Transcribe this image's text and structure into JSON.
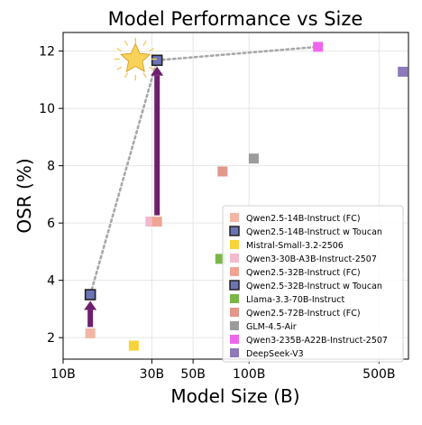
{
  "chart_data": {
    "type": "scatter",
    "title": "Model Performance vs Size",
    "xlabel": "Model Size (B)",
    "ylabel": "OSR (%)",
    "x_scale": "log",
    "xlim": [
      10,
      720
    ],
    "ylim": [
      1.25,
      12.65
    ],
    "x_ticks": [
      {
        "value": 10,
        "label": "10B"
      },
      {
        "value": 30,
        "label": "30B"
      },
      {
        "value": 50,
        "label": "50B"
      },
      {
        "value": 100,
        "label": "100B"
      },
      {
        "value": 500,
        "label": "500B"
      }
    ],
    "y_ticks": [
      2,
      4,
      6,
      8,
      10,
      12
    ],
    "grid": true,
    "legend_position": "lower-right",
    "series": [
      {
        "name": "Qwen2.5-14B-Instruct (FC)",
        "color": "#f4b6a4",
        "edge": "#f4b6a4",
        "x": 14,
        "y": 2.15
      },
      {
        "name": "Qwen2.5-14B-Instruct w Toucan",
        "color": "#6b74b4",
        "edge": "#222222",
        "x": 14,
        "y": 3.5
      },
      {
        "name": "Mistral-Small-3.2-2506",
        "color": "#f7d33a",
        "edge": "#f7d33a",
        "x": 24,
        "y": 1.72
      },
      {
        "name": "Qwen3-30B-A3B-Instruct-2507",
        "color": "#f3b9cc",
        "edge": "#f3b9cc",
        "x": 29.5,
        "y": 6.05
      },
      {
        "name": "Qwen2.5-32B-Instruct (FC)",
        "color": "#f0a493",
        "edge": "#f0a493",
        "x": 32,
        "y": 6.05
      },
      {
        "name": "Qwen2.5-32B-Instruct w Toucan",
        "color": "#6b74b4",
        "edge": "#222222",
        "x": 32,
        "y": 11.68
      },
      {
        "name": "Llama-3.3-70B-Instruct",
        "color": "#7ab648",
        "edge": "#7ab648",
        "x": 70,
        "y": 4.75
      },
      {
        "name": "Qwen2.5-72B-Instruct (FC)",
        "color": "#e3968a",
        "edge": "#e3968a",
        "x": 72,
        "y": 7.8
      },
      {
        "name": "GLM-4.5-Air",
        "color": "#9b9b9b",
        "edge": "#9b9b9b",
        "x": 106,
        "y": 8.25
      },
      {
        "name": "Qwen3-235B-A22B-Instruct-2507",
        "color": "#ee66ee",
        "edge": "#ee66ee",
        "x": 235,
        "y": 12.15
      },
      {
        "name": "DeepSeek-V3",
        "color": "#8e79bd",
        "edge": "#8e79bd",
        "x": 671,
        "y": 11.28
      }
    ],
    "frontier_line": [
      {
        "x": 14,
        "y": 3.5
      },
      {
        "x": 32,
        "y": 11.68
      },
      {
        "x": 235,
        "y": 12.15
      }
    ],
    "arrows": [
      {
        "x": 14,
        "from": 2.15,
        "to": 3.5
      },
      {
        "x": 32,
        "from": 6.05,
        "to": 11.68
      }
    ],
    "arrow_color": "#6e1f6e",
    "highlight": {
      "icon": "star-icon",
      "x": 24.5,
      "y": 11.72,
      "color": "#f9d25a"
    }
  }
}
